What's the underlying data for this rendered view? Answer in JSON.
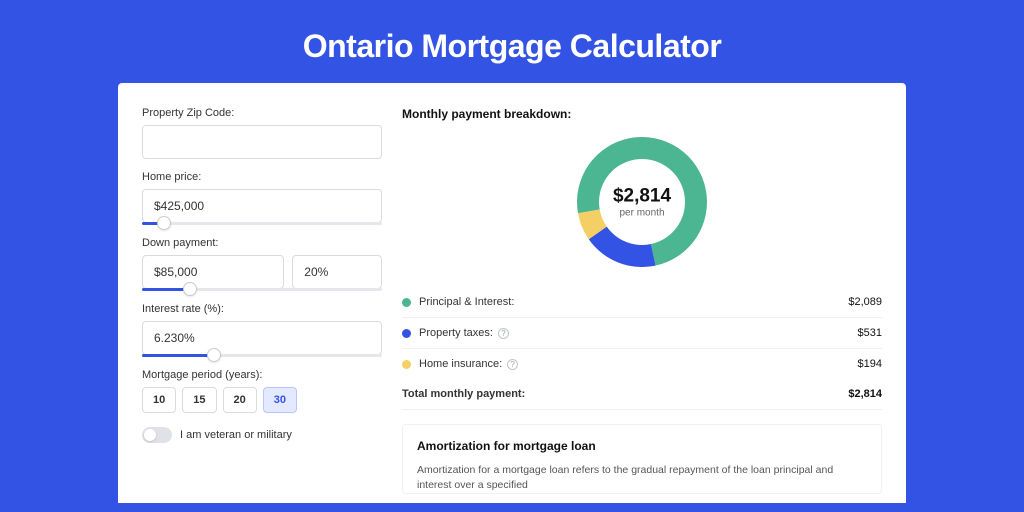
{
  "page": {
    "title": "Ontario Mortgage Calculator",
    "bg_color": "#3353e4"
  },
  "form": {
    "zip": {
      "label": "Property Zip Code:",
      "value": ""
    },
    "price": {
      "label": "Home price:",
      "value": "$425,000",
      "slider_pct": 9
    },
    "down": {
      "label": "Down payment:",
      "value": "$85,000",
      "pct_value": "20%",
      "slider_pct": 20
    },
    "rate": {
      "label": "Interest rate (%):",
      "value": "6.230%",
      "slider_pct": 30
    },
    "period": {
      "label": "Mortgage period (years):",
      "options": [
        "10",
        "15",
        "20",
        "30"
      ],
      "selected": "30"
    },
    "veteran": {
      "label": "I am veteran or military",
      "on": false
    }
  },
  "breakdown": {
    "title": "Monthly payment breakdown:",
    "center_amount": "$2,814",
    "center_sub": "per month",
    "donut": {
      "type": "donut",
      "size": 130,
      "thickness": 22,
      "background": "#ffffff",
      "slices": [
        {
          "label": "Principal & Interest",
          "value": 2089,
          "color": "#4cb592",
          "start": -100,
          "sweep": 268
        },
        {
          "label": "Property taxes",
          "value": 531,
          "color": "#3353e4",
          "start": 168,
          "sweep": 67
        },
        {
          "label": "Home insurance",
          "value": 194,
          "color": "#f4cf65",
          "start": 235,
          "sweep": 25
        }
      ]
    },
    "rows": [
      {
        "dot": "#4cb592",
        "label": "Principal & Interest:",
        "info": false,
        "value": "$2,089"
      },
      {
        "dot": "#3353e4",
        "label": "Property taxes:",
        "info": true,
        "value": "$531"
      },
      {
        "dot": "#f4cf65",
        "label": "Home insurance:",
        "info": true,
        "value": "$194"
      }
    ],
    "total": {
      "label": "Total monthly payment:",
      "value": "$2,814"
    }
  },
  "amort": {
    "title": "Amortization for mortgage loan",
    "text": "Amortization for a mortgage loan refers to the gradual repayment of the loan principal and interest over a specified"
  }
}
